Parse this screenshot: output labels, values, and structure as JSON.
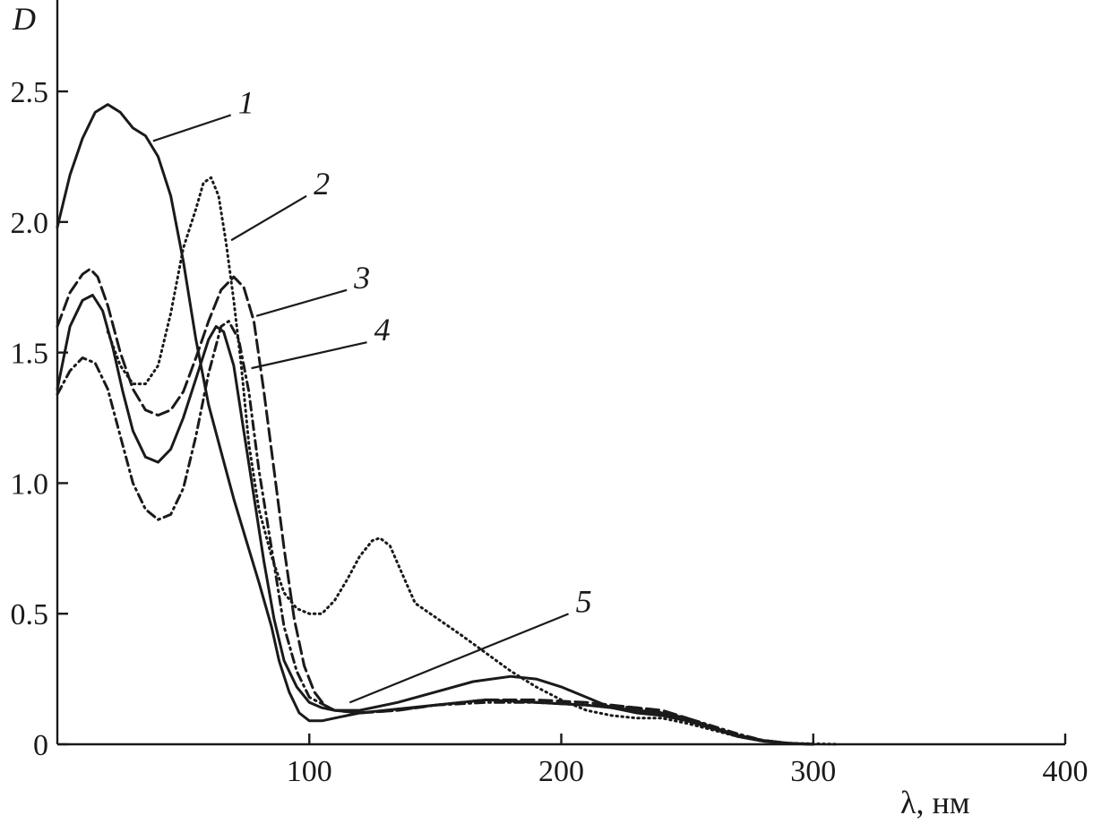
{
  "chart_data": {
    "type": "line",
    "title": "",
    "xlabel": "λ, нм",
    "ylabel": "D",
    "xlim": [
      0,
      400
    ],
    "ylim": [
      0,
      2.85
    ],
    "grid": false,
    "x_ticks": [
      {
        "value": 100,
        "label": "100"
      },
      {
        "value": 200,
        "label": "200"
      },
      {
        "value": 300,
        "label": "300"
      },
      {
        "value": 400,
        "label": "400"
      }
    ],
    "y_ticks": [
      {
        "value": 0,
        "label": "0"
      },
      {
        "value": 0.5,
        "label": "0.5"
      },
      {
        "value": 1.0,
        "label": "1.0"
      },
      {
        "value": 1.5,
        "label": "1.5"
      },
      {
        "value": 2.0,
        "label": "2.0"
      },
      {
        "value": 2.5,
        "label": "2.5"
      }
    ],
    "series": [
      {
        "label": "1",
        "style": "solid",
        "label_value": [
          71,
          2.43
        ],
        "leader_value": [
          38,
          2.31
        ],
        "points": [
          [
            0,
            1.98
          ],
          [
            5,
            2.18
          ],
          [
            10,
            2.32
          ],
          [
            15,
            2.42
          ],
          [
            20,
            2.45
          ],
          [
            25,
            2.42
          ],
          [
            30,
            2.36
          ],
          [
            35,
            2.33
          ],
          [
            40,
            2.25
          ],
          [
            45,
            2.1
          ],
          [
            50,
            1.85
          ],
          [
            55,
            1.55
          ],
          [
            60,
            1.3
          ],
          [
            65,
            1.12
          ],
          [
            70,
            0.94
          ],
          [
            75,
            0.78
          ],
          [
            80,
            0.62
          ],
          [
            85,
            0.45
          ],
          [
            88,
            0.32
          ],
          [
            92,
            0.2
          ],
          [
            96,
            0.12
          ],
          [
            100,
            0.09
          ],
          [
            105,
            0.09
          ],
          [
            110,
            0.1
          ],
          [
            115,
            0.11
          ],
          [
            120,
            0.12
          ],
          [
            130,
            0.13
          ],
          [
            150,
            0.15
          ],
          [
            170,
            0.17
          ],
          [
            190,
            0.16
          ],
          [
            210,
            0.15
          ],
          [
            230,
            0.13
          ],
          [
            240,
            0.12
          ],
          [
            250,
            0.09
          ],
          [
            260,
            0.06
          ],
          [
            270,
            0.035
          ],
          [
            280,
            0.015
          ],
          [
            290,
            0.004
          ],
          [
            300,
            0
          ]
        ]
      },
      {
        "label": "2",
        "style": "dotted",
        "label_value": [
          101,
          2.12
        ],
        "leader_value": [
          69,
          1.93
        ],
        "points": [
          [
            20,
            1.58
          ],
          [
            25,
            1.45
          ],
          [
            30,
            1.38
          ],
          [
            35,
            1.38
          ],
          [
            40,
            1.45
          ],
          [
            45,
            1.65
          ],
          [
            50,
            1.9
          ],
          [
            55,
            2.05
          ],
          [
            58,
            2.15
          ],
          [
            61,
            2.17
          ],
          [
            64,
            2.1
          ],
          [
            67,
            1.92
          ],
          [
            70,
            1.7
          ],
          [
            73,
            1.45
          ],
          [
            76,
            1.15
          ],
          [
            80,
            0.9
          ],
          [
            85,
            0.72
          ],
          [
            90,
            0.58
          ],
          [
            95,
            0.52
          ],
          [
            100,
            0.5
          ],
          [
            105,
            0.5
          ],
          [
            110,
            0.55
          ],
          [
            115,
            0.63
          ],
          [
            120,
            0.72
          ],
          [
            125,
            0.78
          ],
          [
            128,
            0.79
          ],
          [
            132,
            0.76
          ],
          [
            137,
            0.65
          ],
          [
            142,
            0.54
          ],
          [
            148,
            0.5
          ],
          [
            160,
            0.42
          ],
          [
            170,
            0.35
          ],
          [
            180,
            0.28
          ],
          [
            190,
            0.22
          ],
          [
            200,
            0.17
          ],
          [
            210,
            0.13
          ],
          [
            220,
            0.11
          ],
          [
            230,
            0.1
          ],
          [
            240,
            0.1
          ],
          [
            250,
            0.08
          ],
          [
            260,
            0.055
          ],
          [
            270,
            0.03
          ],
          [
            280,
            0.012
          ],
          [
            290,
            0.004
          ],
          [
            310,
            0
          ]
        ]
      },
      {
        "label": "3",
        "style": "dashed",
        "label_value": [
          117,
          1.76
        ],
        "leader_value": [
          79,
          1.64
        ],
        "points": [
          [
            0,
            1.6
          ],
          [
            5,
            1.73
          ],
          [
            10,
            1.8
          ],
          [
            13,
            1.82
          ],
          [
            16,
            1.79
          ],
          [
            20,
            1.68
          ],
          [
            25,
            1.5
          ],
          [
            30,
            1.36
          ],
          [
            35,
            1.28
          ],
          [
            40,
            1.26
          ],
          [
            45,
            1.28
          ],
          [
            50,
            1.35
          ],
          [
            55,
            1.48
          ],
          [
            60,
            1.62
          ],
          [
            65,
            1.74
          ],
          [
            70,
            1.79
          ],
          [
            74,
            1.75
          ],
          [
            78,
            1.62
          ],
          [
            82,
            1.35
          ],
          [
            86,
            1.05
          ],
          [
            90,
            0.75
          ],
          [
            94,
            0.48
          ],
          [
            98,
            0.3
          ],
          [
            102,
            0.2
          ],
          [
            106,
            0.15
          ],
          [
            110,
            0.13
          ],
          [
            120,
            0.12
          ],
          [
            135,
            0.13
          ],
          [
            150,
            0.15
          ],
          [
            170,
            0.17
          ],
          [
            190,
            0.17
          ],
          [
            210,
            0.16
          ],
          [
            230,
            0.14
          ],
          [
            240,
            0.13
          ],
          [
            250,
            0.1
          ],
          [
            260,
            0.065
          ],
          [
            270,
            0.035
          ],
          [
            280,
            0.015
          ],
          [
            290,
            0.004
          ],
          [
            300,
            0
          ]
        ]
      },
      {
        "label": "4",
        "style": "dash-dot",
        "label_value": [
          125,
          1.56
        ],
        "leader_value": [
          77,
          1.44
        ],
        "points": [
          [
            0,
            1.34
          ],
          [
            5,
            1.43
          ],
          [
            10,
            1.48
          ],
          [
            15,
            1.46
          ],
          [
            20,
            1.36
          ],
          [
            25,
            1.18
          ],
          [
            30,
            1.0
          ],
          [
            35,
            0.9
          ],
          [
            40,
            0.86
          ],
          [
            45,
            0.88
          ],
          [
            50,
            0.98
          ],
          [
            55,
            1.18
          ],
          [
            60,
            1.42
          ],
          [
            65,
            1.6
          ],
          [
            68,
            1.62
          ],
          [
            72,
            1.55
          ],
          [
            76,
            1.35
          ],
          [
            80,
            1.05
          ],
          [
            85,
            0.75
          ],
          [
            90,
            0.45
          ],
          [
            95,
            0.28
          ],
          [
            100,
            0.18
          ],
          [
            110,
            0.13
          ],
          [
            120,
            0.12
          ],
          [
            135,
            0.13
          ],
          [
            150,
            0.15
          ],
          [
            170,
            0.16
          ],
          [
            190,
            0.16
          ],
          [
            210,
            0.15
          ],
          [
            230,
            0.14
          ],
          [
            240,
            0.12
          ],
          [
            250,
            0.1
          ],
          [
            260,
            0.07
          ],
          [
            270,
            0.04
          ],
          [
            280,
            0.015
          ],
          [
            290,
            0.004
          ],
          [
            300,
            0
          ]
        ]
      },
      {
        "label": "5",
        "style": "solid",
        "label_value": [
          205,
          0.52
        ],
        "leader_value": [
          116,
          0.16
        ],
        "points": [
          [
            0,
            1.36
          ],
          [
            5,
            1.6
          ],
          [
            10,
            1.7
          ],
          [
            14,
            1.72
          ],
          [
            18,
            1.66
          ],
          [
            22,
            1.52
          ],
          [
            26,
            1.35
          ],
          [
            30,
            1.2
          ],
          [
            35,
            1.1
          ],
          [
            40,
            1.08
          ],
          [
            45,
            1.13
          ],
          [
            50,
            1.25
          ],
          [
            55,
            1.4
          ],
          [
            60,
            1.55
          ],
          [
            63,
            1.6
          ],
          [
            66,
            1.58
          ],
          [
            70,
            1.45
          ],
          [
            74,
            1.2
          ],
          [
            78,
            0.95
          ],
          [
            82,
            0.7
          ],
          [
            86,
            0.48
          ],
          [
            90,
            0.32
          ],
          [
            95,
            0.22
          ],
          [
            100,
            0.16
          ],
          [
            105,
            0.14
          ],
          [
            110,
            0.13
          ],
          [
            120,
            0.13
          ],
          [
            135,
            0.16
          ],
          [
            150,
            0.2
          ],
          [
            165,
            0.24
          ],
          [
            180,
            0.26
          ],
          [
            190,
            0.25
          ],
          [
            200,
            0.22
          ],
          [
            210,
            0.18
          ],
          [
            220,
            0.14
          ],
          [
            230,
            0.12
          ],
          [
            240,
            0.11
          ],
          [
            250,
            0.09
          ],
          [
            260,
            0.06
          ],
          [
            270,
            0.03
          ],
          [
            280,
            0.012
          ],
          [
            290,
            0.003
          ],
          [
            300,
            0
          ]
        ]
      }
    ]
  }
}
